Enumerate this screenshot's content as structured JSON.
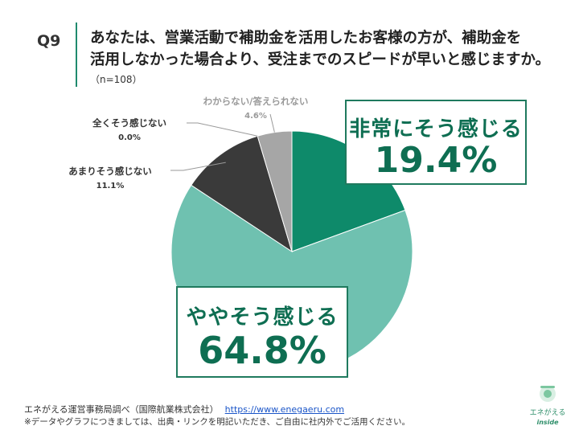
{
  "question": {
    "label": "Q9",
    "text_line1": "あなたは、営業活動で補助金を活用したお客様の方が、補助金を",
    "text_line2": "活用しなかった場合より、受注までのスピードが早いと感じますか。",
    "n": "（n=108）"
  },
  "chart_data": {
    "type": "pie",
    "slices": [
      {
        "label": "非常にそう感じる",
        "value": 19.4,
        "display": "19.4%",
        "color": "#0e8a6a"
      },
      {
        "label": "ややそう感じる",
        "value": 64.8,
        "display": "64.8%",
        "color": "#6fc1b0"
      },
      {
        "label": "あまりそう感じない",
        "value": 11.1,
        "display": "11.1%",
        "color": "#3a3a3a"
      },
      {
        "label": "全くそう感じない",
        "value": 0.0,
        "display": "0.0%",
        "color": "#1e1e1e"
      },
      {
        "label": "わからない/答えられない",
        "value": 4.6,
        "display": "4.6%",
        "color": "#a6a6a6"
      }
    ]
  },
  "footer": {
    "source": "エネがえる運営事務局調べ（国際航業株式会社）",
    "url": "https://www.enegaeru.com",
    "note": "※データやグラフにつきましては、出典・リンクを明記いただき、ご自由に社内外でご活用ください。"
  },
  "logo": {
    "line1": "エネがえる",
    "line2": "inside"
  }
}
